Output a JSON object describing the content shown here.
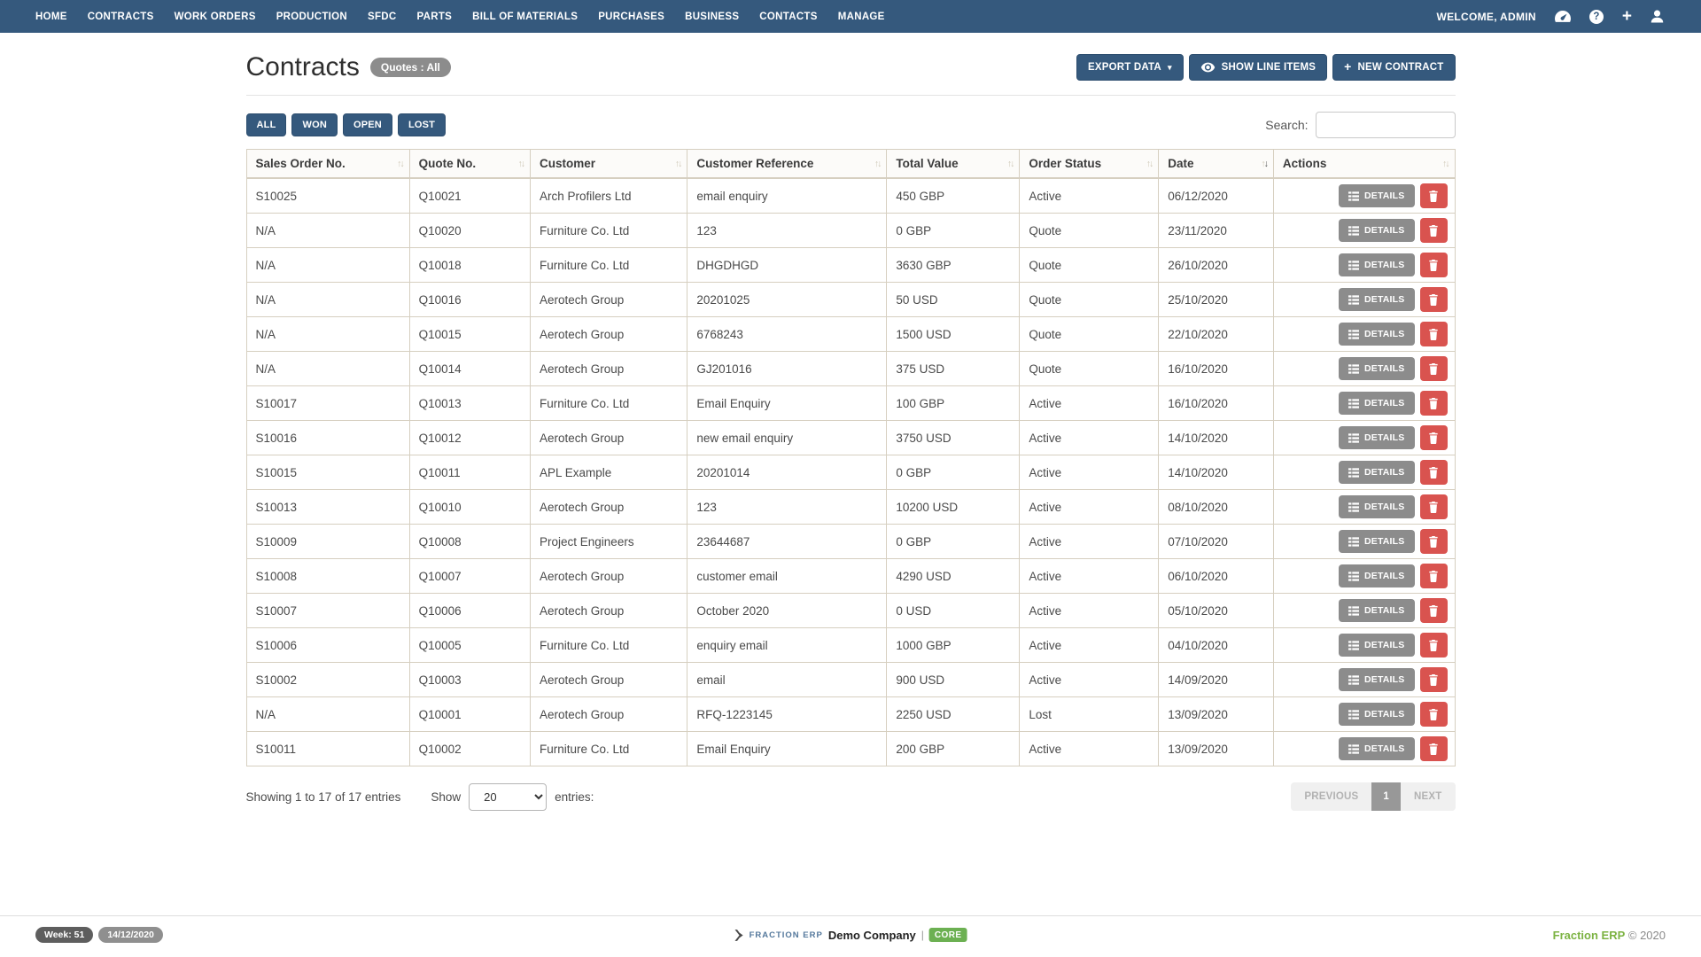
{
  "nav": {
    "items": [
      "HOME",
      "CONTRACTS",
      "WORK ORDERS",
      "PRODUCTION",
      "SFDC",
      "PARTS",
      "BILL OF MATERIALS",
      "PURCHASES",
      "BUSINESS",
      "CONTACTS",
      "MANAGE"
    ],
    "welcome": "WELCOME, ADMIN",
    "icons": [
      "gauge-icon",
      "question-circle-icon",
      "plus-icon",
      "user-icon"
    ]
  },
  "header": {
    "title": "Contracts",
    "badge": "Quotes : All",
    "export_button": "EXPORT DATA",
    "export_caret": "▾",
    "show_line_items_button": "SHOW LINE ITEMS",
    "new_contract_plus": "+",
    "new_contract_button": "NEW CONTRACT"
  },
  "filters": [
    "ALL",
    "WON",
    "OPEN",
    "LOST"
  ],
  "search": {
    "label": "Search:",
    "value": ""
  },
  "table": {
    "columns": [
      {
        "label": "Sales Order No.",
        "key": "sales-order-no",
        "sort": "both"
      },
      {
        "label": "Quote No.",
        "key": "quote-no",
        "sort": "both"
      },
      {
        "label": "Customer",
        "key": "customer",
        "sort": "both"
      },
      {
        "label": "Customer Reference",
        "key": "customer-reference",
        "sort": "both"
      },
      {
        "label": "Total Value",
        "key": "total-value",
        "sort": "both"
      },
      {
        "label": "Order Status",
        "key": "order-status",
        "sort": "both"
      },
      {
        "label": "Date",
        "key": "date",
        "sort": "desc"
      },
      {
        "label": "Actions",
        "key": "actions",
        "sort": "both"
      }
    ],
    "rows": [
      [
        "S10025",
        "Q10021",
        "Arch Profilers Ltd",
        "email enquiry",
        "450 GBP",
        "Active",
        "06/12/2020"
      ],
      [
        "N/A",
        "Q10020",
        "Furniture Co. Ltd",
        "123",
        "0 GBP",
        "Quote",
        "23/11/2020"
      ],
      [
        "N/A",
        "Q10018",
        "Furniture Co. Ltd",
        "DHGDHGD",
        "3630 GBP",
        "Quote",
        "26/10/2020"
      ],
      [
        "N/A",
        "Q10016",
        "Aerotech Group",
        "20201025",
        "50 USD",
        "Quote",
        "25/10/2020"
      ],
      [
        "N/A",
        "Q10015",
        "Aerotech Group",
        "6768243",
        "1500 USD",
        "Quote",
        "22/10/2020"
      ],
      [
        "N/A",
        "Q10014",
        "Aerotech Group",
        "GJ201016",
        "375 USD",
        "Quote",
        "16/10/2020"
      ],
      [
        "S10017",
        "Q10013",
        "Furniture Co. Ltd",
        "Email Enquiry",
        "100 GBP",
        "Active",
        "16/10/2020"
      ],
      [
        "S10016",
        "Q10012",
        "Aerotech Group",
        "new email enquiry",
        "3750 USD",
        "Active",
        "14/10/2020"
      ],
      [
        "S10015",
        "Q10011",
        "APL Example",
        "20201014",
        "0 GBP",
        "Active",
        "14/10/2020"
      ],
      [
        "S10013",
        "Q10010",
        "Aerotech Group",
        "123",
        "10200 USD",
        "Active",
        "08/10/2020"
      ],
      [
        "S10009",
        "Q10008",
        "Project Engineers",
        "23644687",
        "0 GBP",
        "Active",
        "07/10/2020"
      ],
      [
        "S10008",
        "Q10007",
        "Aerotech Group",
        "customer email",
        "4290 USD",
        "Active",
        "06/10/2020"
      ],
      [
        "S10007",
        "Q10006",
        "Aerotech Group",
        "October 2020",
        "0 USD",
        "Active",
        "05/10/2020"
      ],
      [
        "S10006",
        "Q10005",
        "Furniture Co. Ltd",
        "enquiry email",
        "1000 GBP",
        "Active",
        "04/10/2020"
      ],
      [
        "S10002",
        "Q10003",
        "Aerotech Group",
        "email",
        "900 USD",
        "Active",
        "14/09/2020"
      ],
      [
        "N/A",
        "Q10001",
        "Aerotech Group",
        "RFQ-1223145",
        "2250 USD",
        "Lost",
        "13/09/2020"
      ],
      [
        "S10011",
        "Q10002",
        "Furniture Co. Ltd",
        "Email Enquiry",
        "200 GBP",
        "Active",
        "13/09/2020"
      ]
    ],
    "details_label": "DETAILS"
  },
  "table_footer": {
    "showing": "Showing 1 to 17 of 17 entries",
    "show_label": "Show",
    "page_size": "20",
    "entries_label": "entries:",
    "previous": "PREVIOUS",
    "page": "1",
    "next": "NEXT"
  },
  "footer": {
    "week_badge": "Week: 51",
    "date_badge": "14/12/2020",
    "brand": "FRACTION ERP",
    "company": "Demo Company",
    "separator": "|",
    "core_badge": "CORE",
    "copyright_brand": "Fraction ERP",
    "copyright": "© 2020"
  },
  "colors": {
    "navbar_blue": "#35597d",
    "button_blue": "#35597d",
    "danger_red": "#d9534f",
    "badge_gray": "#8c8c8c",
    "table_border_tan": "#d6cfc0",
    "core_green": "#6cb052",
    "brand_green": "#7cb342"
  }
}
